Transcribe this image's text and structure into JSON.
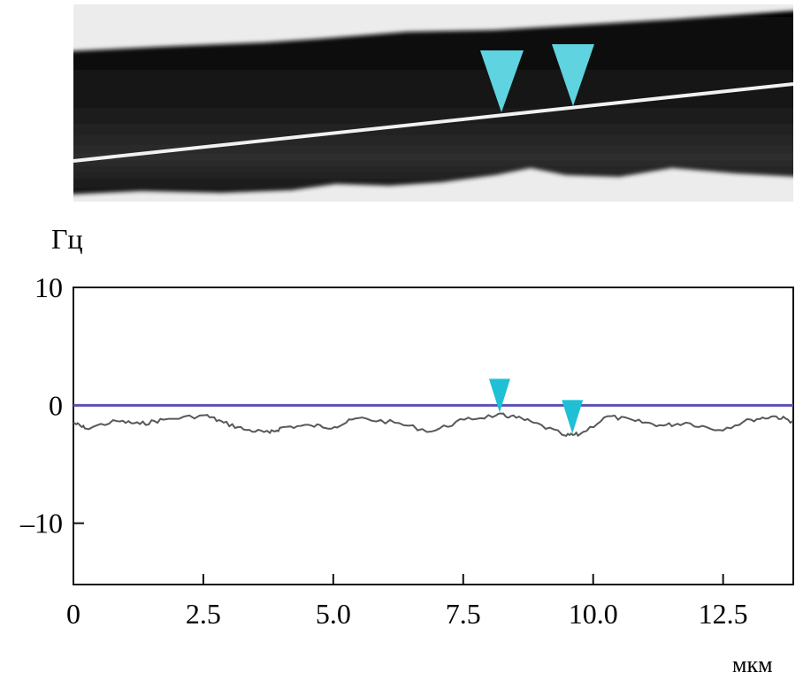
{
  "colors": {
    "zero_line": "#5b52b3",
    "marker": "#1fbfd6",
    "trace": "#555a58",
    "micrograph_band": "#111111",
    "micrograph_background": "#e8e8e8"
  },
  "micrograph": {
    "description_icons": [
      "arrowhead-marker-icon",
      "arrowhead-marker-icon"
    ],
    "marker_positions_um": [
      8.2,
      9.6
    ]
  },
  "chart_data": {
    "type": "line",
    "ylabel": "Гц",
    "xlabel": "мкм",
    "xlim": [
      0,
      13.85
    ],
    "ylim": [
      -15.2,
      10
    ],
    "grid": false,
    "x_ticks": [
      0,
      2.5,
      5.0,
      7.5,
      10.0,
      12.5
    ],
    "x_tick_labels": [
      "0",
      "2.5",
      "5.0",
      "7.5",
      "10.0",
      "12.5"
    ],
    "y_ticks": [
      10,
      0,
      -10
    ],
    "y_tick_labels": [
      "10",
      "0",
      "–10"
    ],
    "reference_line_y": 0,
    "series": [
      {
        "x": [
          0,
          0.22,
          0.84,
          1.28,
          1.73,
          2.53,
          2.89,
          3.33,
          3.78,
          4.04,
          4.58,
          5.02,
          5.47,
          6.18,
          6.89,
          7.52,
          8.14,
          8.41,
          8.85,
          9.48,
          9.74,
          10.28,
          10.81,
          11.35,
          11.79,
          12.42,
          13.04,
          13.48,
          13.84
        ],
        "y": [
          -1.47,
          -1.96,
          -1.34,
          -1.59,
          -1.22,
          -0.84,
          -1.47,
          -2.09,
          -2.34,
          -1.84,
          -1.72,
          -1.84,
          -1.09,
          -1.47,
          -2.22,
          -1.22,
          -0.84,
          -0.92,
          -1.47,
          -2.59,
          -2.47,
          -0.92,
          -1.34,
          -1.72,
          -1.47,
          -2.09,
          -1.22,
          -0.92,
          -1.34
        ]
      }
    ],
    "markers": [
      {
        "x": 8.2,
        "y": -0.6
      },
      {
        "x": 9.6,
        "y": -2.4
      }
    ]
  }
}
